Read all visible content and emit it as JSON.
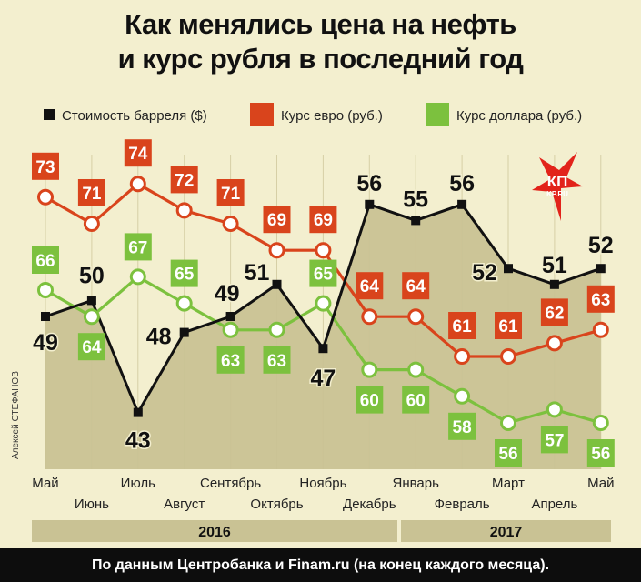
{
  "title_lines": [
    "Как менялись цена на нефть",
    "и курс рубля в последний год"
  ],
  "credit": "Алексей СТЕФАНОВ",
  "footer": "По данным Центробанка и Finam.ru (на конец каждого месяца).",
  "logo": {
    "top": "КП",
    "bottom": "KP.RU"
  },
  "colors": {
    "oil": "#111111",
    "euro": "#d9441c",
    "dollar": "#7cc13e",
    "area": "#c9c294",
    "background": "#f3efcf"
  },
  "chart_data": {
    "type": "line",
    "categories": [
      "Май",
      "Июнь",
      "Июль",
      "Август",
      "Сентябрь",
      "Октябрь",
      "Ноябрь",
      "Декабрь",
      "Январь",
      "Февраль",
      "Март",
      "Апрель",
      "Май"
    ],
    "years": [
      {
        "label": "2016",
        "from": 0,
        "to": 7
      },
      {
        "label": "2017",
        "from": 8,
        "to": 12
      }
    ],
    "series": [
      {
        "name": "Стоимость барреля ($)",
        "values": [
          49,
          50,
          43,
          48,
          49,
          51,
          47,
          56,
          55,
          56,
          52,
          51,
          52
        ]
      },
      {
        "name": "Курс евро (руб.)",
        "values": [
          73,
          71,
          74,
          72,
          71,
          69,
          69,
          64,
          64,
          61,
          61,
          62,
          63
        ]
      },
      {
        "name": "Курс доллара (руб.)",
        "values": [
          66,
          64,
          67,
          65,
          63,
          63,
          65,
          60,
          60,
          58,
          56,
          57,
          56
        ]
      }
    ],
    "legend_position": "top"
  }
}
